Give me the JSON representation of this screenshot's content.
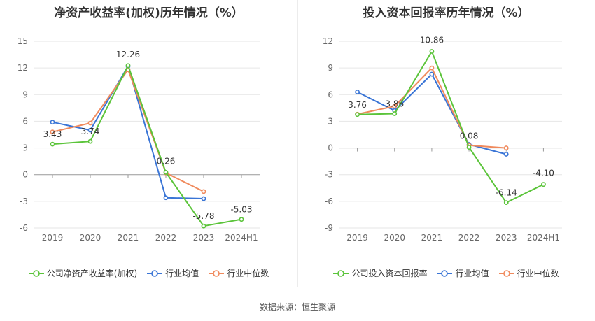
{
  "chart_data": [
    {
      "type": "line",
      "title": "净资产收益率(加权)历年情况（%）",
      "categories": [
        "2019",
        "2020",
        "2021",
        "2022",
        "2023",
        "2024H1"
      ],
      "yticks": [
        15,
        12,
        9,
        6,
        3,
        0,
        -3,
        -6
      ],
      "ylim": [
        -6,
        15
      ],
      "grid": true,
      "legend_position": "bottom",
      "series": [
        {
          "name": "公司净资产收益率(加权)",
          "color": "#5bc43a",
          "values": [
            3.43,
            3.74,
            12.26,
            0.26,
            -5.78,
            -5.03
          ],
          "labels": [
            "3.43",
            "3.74",
            "12.26",
            "0.26",
            "-5.78",
            "-5.03"
          ]
        },
        {
          "name": "行业均值",
          "color": "#3a75d6",
          "values": [
            5.9,
            5.0,
            12.2,
            -2.6,
            -2.7,
            null
          ]
        },
        {
          "name": "行业中位数",
          "color": "#f08a5d",
          "values": [
            4.8,
            5.8,
            11.8,
            0.2,
            -1.9,
            null
          ]
        }
      ]
    },
    {
      "type": "line",
      "title": "投入资本回报率历年情况（%）",
      "categories": [
        "2019",
        "2020",
        "2021",
        "2022",
        "2023",
        "2024H1"
      ],
      "yticks": [
        12,
        9,
        6,
        3,
        0,
        -3,
        -6,
        -9
      ],
      "ylim": [
        -9,
        12
      ],
      "grid": true,
      "legend_position": "bottom",
      "series": [
        {
          "name": "公司投入资本回报率",
          "color": "#5bc43a",
          "values": [
            3.76,
            3.86,
            10.86,
            0.08,
            -6.14,
            -4.1
          ],
          "labels": [
            "3.76",
            "3.86",
            "10.86",
            "0.08",
            "-6.14",
            "-4.10"
          ]
        },
        {
          "name": "行业均值",
          "color": "#3a75d6",
          "values": [
            6.3,
            4.2,
            8.3,
            0.4,
            -0.7,
            null
          ]
        },
        {
          "name": "行业中位数",
          "color": "#f08a5d",
          "values": [
            3.8,
            4.7,
            9.0,
            0.3,
            0.0,
            null
          ]
        }
      ]
    }
  ],
  "source_text": "数据来源：恒生聚源"
}
